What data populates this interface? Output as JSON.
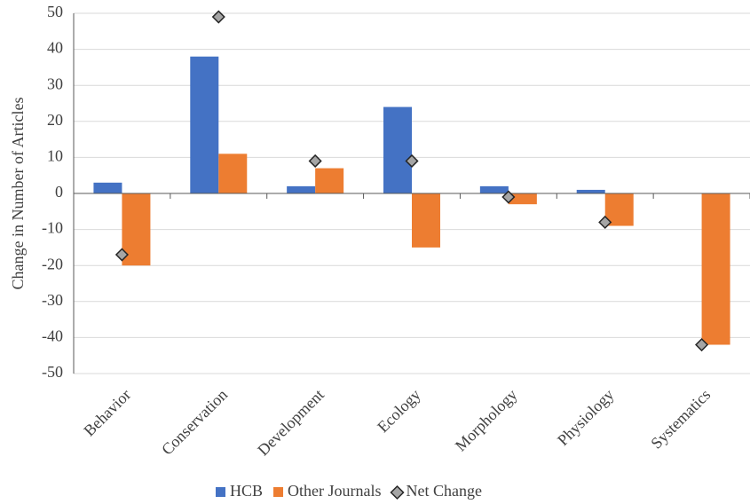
{
  "chart_data": {
    "type": "bar",
    "y_label": "Change in Number of Articles",
    "categories": [
      "Behavior",
      "Conservation",
      "Development",
      "Ecology",
      "Morphology",
      "Physiology",
      "Systematics"
    ],
    "series": [
      {
        "name": "HCB",
        "color": "#4472c4",
        "kind": "bar",
        "values": [
          3,
          38,
          2,
          24,
          2,
          1,
          0
        ]
      },
      {
        "name": "Other Journals",
        "color": "#ed7d31",
        "kind": "bar",
        "values": [
          -20,
          11,
          7,
          -15,
          -3,
          -9,
          -42
        ]
      },
      {
        "name": "Net Change",
        "color": "#a5a5a5",
        "kind": "diamond",
        "values": [
          -17,
          49,
          9,
          9,
          -1,
          -8,
          -42
        ]
      }
    ],
    "ylim": [
      -50,
      50
    ],
    "yticks": [
      -50,
      -40,
      -30,
      -20,
      -10,
      0,
      10,
      20,
      30,
      40,
      50
    ],
    "grid": true,
    "legend": "bottom"
  }
}
